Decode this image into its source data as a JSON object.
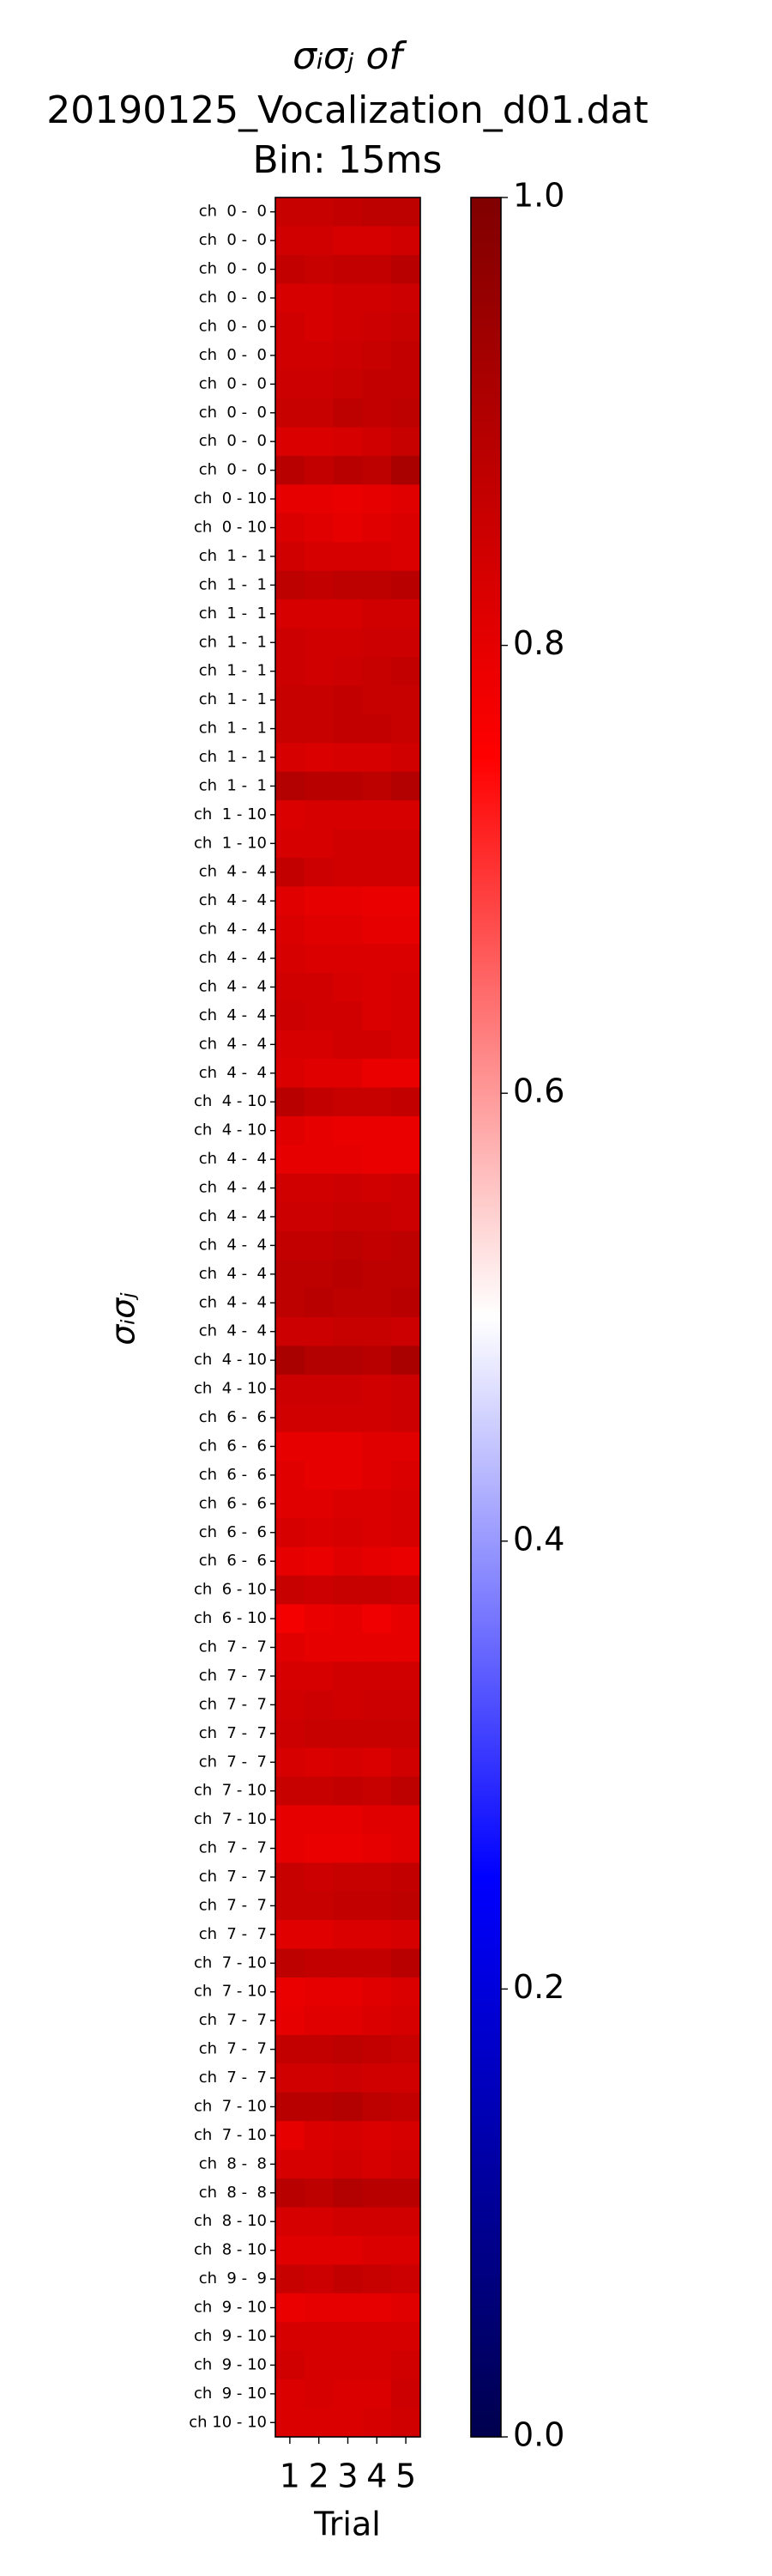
{
  "chart_data": {
    "type": "heatmap",
    "title": [
      "σᵢσⱼ of",
      "20190125_Vocalization_d01.dat",
      "Bin: 15ms"
    ],
    "x_label": "Trial",
    "y_label": "σᵢσⱼ",
    "colormap": "seismic",
    "zlim": [
      0,
      1
    ],
    "zticks": [
      {
        "value": 0,
        "label": "0.0"
      },
      0.2,
      0.4,
      0.6,
      0.8,
      {
        "value": 1,
        "label": "1.0"
      }
    ],
    "columns": [
      "1",
      "2",
      "3",
      "4",
      "5"
    ],
    "rows": [
      "ch  0 -  0",
      "ch  0 -  0",
      "ch  0 -  0",
      "ch  0 -  0",
      "ch  0 -  0",
      "ch  0 -  0",
      "ch  0 -  0",
      "ch  0 -  0",
      "ch  0 -  0",
      "ch  0 -  0",
      "ch  0 - 10",
      "ch  0 - 10",
      "ch  1 -  1",
      "ch  1 -  1",
      "ch  1 -  1",
      "ch  1 -  1",
      "ch  1 -  1",
      "ch  1 -  1",
      "ch  1 -  1",
      "ch  1 -  1",
      "ch  1 -  1",
      "ch  1 - 10",
      "ch  1 - 10",
      "ch  4 -  4",
      "ch  4 -  4",
      "ch  4 -  4",
      "ch  4 -  4",
      "ch  4 -  4",
      "ch  4 -  4",
      "ch  4 -  4",
      "ch  4 -  4",
      "ch  4 - 10",
      "ch  4 - 10",
      "ch  4 -  4",
      "ch  4 -  4",
      "ch  4 -  4",
      "ch  4 -  4",
      "ch  4 -  4",
      "ch  4 -  4",
      "ch  4 -  4",
      "ch  4 - 10",
      "ch  4 - 10",
      "ch  6 -  6",
      "ch  6 -  6",
      "ch  6 -  6",
      "ch  6 -  6",
      "ch  6 -  6",
      "ch  6 -  6",
      "ch  6 - 10",
      "ch  6 - 10",
      "ch  7 -  7",
      "ch  7 -  7",
      "ch  7 -  7",
      "ch  7 -  7",
      "ch  7 -  7",
      "ch  7 - 10",
      "ch  7 - 10",
      "ch  7 -  7",
      "ch  7 -  7",
      "ch  7 -  7",
      "ch  7 -  7",
      "ch  7 - 10",
      "ch  7 - 10",
      "ch  7 -  7",
      "ch  7 -  7",
      "ch  7 -  7",
      "ch  7 - 10",
      "ch  7 - 10",
      "ch  8 -  8",
      "ch  8 -  8",
      "ch  8 - 10",
      "ch  8 - 10",
      "ch  9 -  9",
      "ch  9 - 10",
      "ch  9 - 10",
      "ch  9 - 10",
      "ch  9 - 10",
      "ch 10 - 10"
    ],
    "values": [
      [
        0.86,
        0.86,
        0.87,
        0.88,
        0.88
      ],
      [
        0.84,
        0.84,
        0.83,
        0.83,
        0.84
      ],
      [
        0.87,
        0.86,
        0.87,
        0.87,
        0.89
      ],
      [
        0.83,
        0.83,
        0.84,
        0.84,
        0.85
      ],
      [
        0.84,
        0.83,
        0.84,
        0.85,
        0.86
      ],
      [
        0.84,
        0.84,
        0.85,
        0.86,
        0.87
      ],
      [
        0.85,
        0.85,
        0.86,
        0.87,
        0.87
      ],
      [
        0.86,
        0.86,
        0.88,
        0.87,
        0.88
      ],
      [
        0.82,
        0.82,
        0.83,
        0.84,
        0.86
      ],
      [
        0.89,
        0.87,
        0.89,
        0.88,
        0.92
      ],
      [
        0.8,
        0.8,
        0.79,
        0.8,
        0.81
      ],
      [
        0.82,
        0.81,
        0.8,
        0.81,
        0.82
      ],
      [
        0.84,
        0.83,
        0.83,
        0.83,
        0.82
      ],
      [
        0.88,
        0.87,
        0.88,
        0.88,
        0.89
      ],
      [
        0.83,
        0.83,
        0.83,
        0.84,
        0.84
      ],
      [
        0.85,
        0.84,
        0.84,
        0.85,
        0.85
      ],
      [
        0.85,
        0.84,
        0.85,
        0.86,
        0.87
      ],
      [
        0.86,
        0.86,
        0.87,
        0.86,
        0.86
      ],
      [
        0.86,
        0.86,
        0.87,
        0.87,
        0.86
      ],
      [
        0.83,
        0.82,
        0.83,
        0.83,
        0.84
      ],
      [
        0.9,
        0.89,
        0.89,
        0.88,
        0.9
      ],
      [
        0.82,
        0.83,
        0.83,
        0.83,
        0.83
      ],
      [
        0.83,
        0.83,
        0.84,
        0.84,
        0.84
      ],
      [
        0.87,
        0.85,
        0.84,
        0.84,
        0.84
      ],
      [
        0.81,
        0.8,
        0.8,
        0.79,
        0.79
      ],
      [
        0.82,
        0.81,
        0.81,
        0.8,
        0.8
      ],
      [
        0.83,
        0.82,
        0.82,
        0.82,
        0.82
      ],
      [
        0.84,
        0.84,
        0.83,
        0.82,
        0.83
      ],
      [
        0.85,
        0.84,
        0.84,
        0.82,
        0.83
      ],
      [
        0.83,
        0.83,
        0.84,
        0.84,
        0.83
      ],
      [
        0.82,
        0.81,
        0.81,
        0.79,
        0.79
      ],
      [
        0.89,
        0.87,
        0.86,
        0.86,
        0.87
      ],
      [
        0.81,
        0.8,
        0.79,
        0.79,
        0.79
      ],
      [
        0.8,
        0.8,
        0.8,
        0.79,
        0.79
      ],
      [
        0.84,
        0.84,
        0.85,
        0.84,
        0.85
      ],
      [
        0.85,
        0.85,
        0.86,
        0.86,
        0.85
      ],
      [
        0.87,
        0.87,
        0.88,
        0.87,
        0.88
      ],
      [
        0.88,
        0.88,
        0.89,
        0.88,
        0.88
      ],
      [
        0.88,
        0.89,
        0.88,
        0.88,
        0.89
      ],
      [
        0.85,
        0.85,
        0.86,
        0.86,
        0.85
      ],
      [
        0.92,
        0.9,
        0.9,
        0.89,
        0.92
      ],
      [
        0.85,
        0.85,
        0.85,
        0.84,
        0.85
      ],
      [
        0.84,
        0.84,
        0.84,
        0.84,
        0.85
      ],
      [
        0.8,
        0.8,
        0.8,
        0.81,
        0.81
      ],
      [
        0.81,
        0.8,
        0.8,
        0.81,
        0.82
      ],
      [
        0.81,
        0.81,
        0.82,
        0.82,
        0.83
      ],
      [
        0.83,
        0.82,
        0.83,
        0.82,
        0.83
      ],
      [
        0.8,
        0.79,
        0.81,
        0.8,
        0.79
      ],
      [
        0.86,
        0.85,
        0.86,
        0.86,
        0.85
      ],
      [
        0.77,
        0.79,
        0.8,
        0.78,
        0.8
      ],
      [
        0.81,
        0.8,
        0.8,
        0.8,
        0.8
      ],
      [
        0.83,
        0.83,
        0.84,
        0.84,
        0.84
      ],
      [
        0.84,
        0.85,
        0.84,
        0.85,
        0.85
      ],
      [
        0.85,
        0.86,
        0.86,
        0.86,
        0.86
      ],
      [
        0.83,
        0.82,
        0.83,
        0.82,
        0.84
      ],
      [
        0.86,
        0.86,
        0.87,
        0.86,
        0.88
      ],
      [
        0.8,
        0.8,
        0.8,
        0.81,
        0.81
      ],
      [
        0.8,
        0.79,
        0.79,
        0.8,
        0.81
      ],
      [
        0.86,
        0.85,
        0.86,
        0.86,
        0.87
      ],
      [
        0.86,
        0.86,
        0.87,
        0.87,
        0.88
      ],
      [
        0.81,
        0.81,
        0.82,
        0.82,
        0.83
      ],
      [
        0.88,
        0.87,
        0.87,
        0.87,
        0.89
      ],
      [
        0.79,
        0.8,
        0.8,
        0.81,
        0.82
      ],
      [
        0.8,
        0.81,
        0.81,
        0.82,
        0.83
      ],
      [
        0.87,
        0.87,
        0.88,
        0.87,
        0.86
      ],
      [
        0.84,
        0.84,
        0.85,
        0.84,
        0.84
      ],
      [
        0.89,
        0.89,
        0.9,
        0.88,
        0.87
      ],
      [
        0.8,
        0.82,
        0.83,
        0.82,
        0.83
      ],
      [
        0.83,
        0.83,
        0.84,
        0.83,
        0.84
      ],
      [
        0.89,
        0.88,
        0.9,
        0.89,
        0.89
      ],
      [
        0.83,
        0.83,
        0.84,
        0.84,
        0.84
      ],
      [
        0.81,
        0.81,
        0.81,
        0.82,
        0.82
      ],
      [
        0.86,
        0.85,
        0.87,
        0.86,
        0.85
      ],
      [
        0.79,
        0.8,
        0.8,
        0.8,
        0.81
      ],
      [
        0.83,
        0.83,
        0.83,
        0.83,
        0.83
      ],
      [
        0.84,
        0.83,
        0.83,
        0.83,
        0.84
      ],
      [
        0.82,
        0.83,
        0.82,
        0.82,
        0.85
      ],
      [
        0.82,
        0.82,
        0.82,
        0.83,
        0.84
      ]
    ]
  }
}
